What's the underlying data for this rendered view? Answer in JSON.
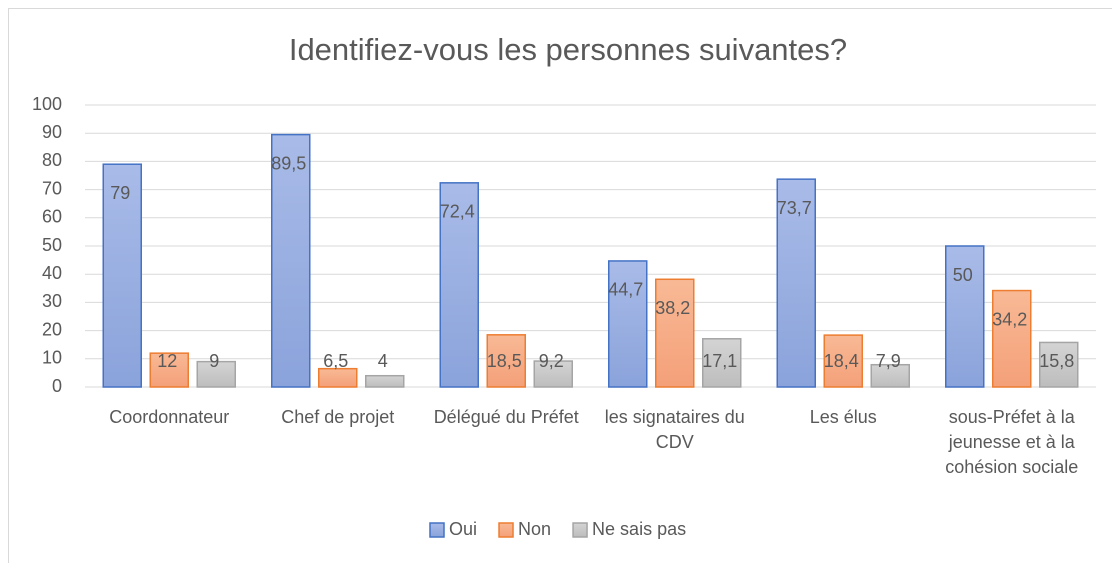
{
  "chart_data": {
    "type": "bar",
    "title": "Identifiez-vous les personnes suivantes?",
    "categories": [
      "Coordonnateur",
      "Chef de projet",
      "Délégué du Préfet",
      "les signataires du CDV",
      "Les élus",
      "sous-Préfet à la jeunesse et à la cohésion sociale"
    ],
    "series": [
      {
        "name": "Oui",
        "color": "#4472c4",
        "values": [
          79,
          89.5,
          72.4,
          44.7,
          73.7,
          50
        ],
        "value_labels": [
          "79",
          "89,5",
          "72,4",
          "44,7",
          "73,7",
          "50"
        ]
      },
      {
        "name": "Non",
        "color": "#ed7d31",
        "values": [
          12,
          6.5,
          18.5,
          38.2,
          18.4,
          34.2
        ],
        "value_labels": [
          "12",
          "6,5",
          "18,5",
          "38,2",
          "18,4",
          "34,2"
        ]
      },
      {
        "name": "Ne sais pas",
        "color": "#a5a5a5",
        "values": [
          9,
          4,
          9.2,
          17.1,
          7.9,
          15.8
        ],
        "value_labels": [
          "9",
          "4",
          "9,2",
          "17,1",
          "7,9",
          "15,8"
        ]
      }
    ],
    "ylim": [
      0,
      100
    ],
    "yticks": [
      0,
      10,
      20,
      30,
      40,
      50,
      60,
      70,
      80,
      90,
      100
    ],
    "grid": true,
    "legend": "bottom"
  }
}
